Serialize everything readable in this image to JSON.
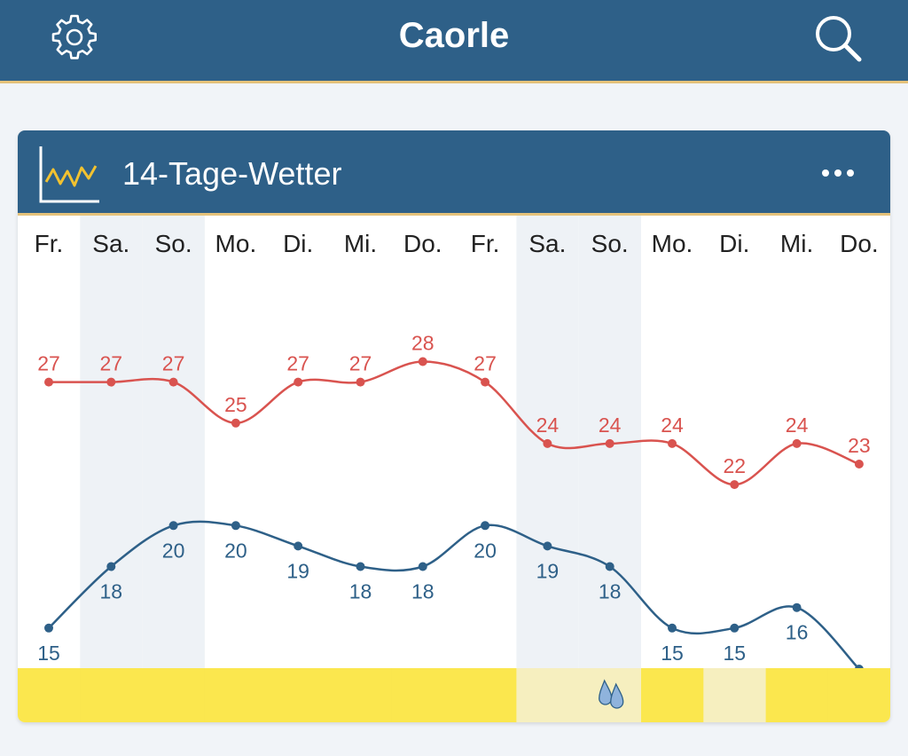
{
  "header": {
    "title": "Caorle",
    "settings_icon": "gear-icon",
    "search_icon": "search-icon"
  },
  "card": {
    "title": "14-Tage-Wetter",
    "icon": "line-chart-icon",
    "menu_icon": "more-dots-icon"
  },
  "colors": {
    "header_bg": "#2e6088",
    "accent_line": "#e5c27a",
    "max_color": "#d9534f",
    "min_color": "#2e6088",
    "weekend_bg": "#eef2f6",
    "sun_bar": "#fbe74e",
    "cloud_bar": "#f6efbf"
  },
  "chart_data": {
    "type": "line",
    "categories": [
      "Fr.",
      "Sa.",
      "So.",
      "Mo.",
      "Di.",
      "Mi.",
      "Do.",
      "Fr.",
      "Sa.",
      "So.",
      "Mo.",
      "Di.",
      "Mi.",
      "Do."
    ],
    "weekend": [
      false,
      true,
      true,
      false,
      false,
      false,
      false,
      false,
      true,
      true,
      false,
      false,
      false,
      false
    ],
    "series": [
      {
        "values": [
          27,
          27,
          27,
          25,
          27,
          27,
          28,
          27,
          24,
          24,
          24,
          22,
          24,
          23
        ]
      },
      {
        "values": [
          15,
          18,
          20,
          20,
          19,
          18,
          18,
          20,
          19,
          18,
          15,
          15,
          16,
          13
        ]
      }
    ],
    "weather_bar": [
      "sun",
      "sun",
      "sun",
      "sun",
      "sun",
      "sun",
      "sun",
      "sun",
      "cloud",
      "rain",
      "sun",
      "cloud",
      "sun",
      "sun"
    ]
  }
}
